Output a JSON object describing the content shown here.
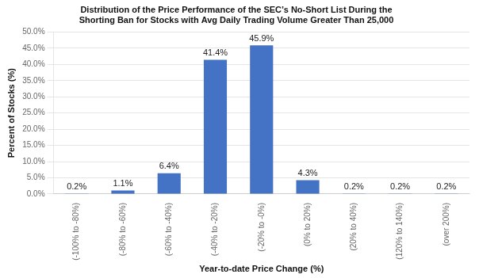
{
  "chart_data": {
    "type": "bar",
    "title": "Distribution of the Price Performance of the SEC’s No-Short List During the\nShorting Ban for Stocks with Avg Daily Trading Volume Greater Than 25,000",
    "xlabel": "Year-to-date Price Change (%)",
    "ylabel": "Percent of Stocks (%)",
    "categories": [
      "(-100% to -80%)",
      "(-80% to -60%)",
      "(-60% to -40%)",
      "(-40% to -20%)",
      "(-20% to -0%)",
      "(0% to 20%)",
      "(20% to 40%)",
      "(120% to 140%)",
      "(over 200%)"
    ],
    "values": [
      0.2,
      1.1,
      6.4,
      41.4,
      45.9,
      4.3,
      0.2,
      0.2,
      0.2
    ],
    "value_labels": [
      "0.2%",
      "1.1%",
      "6.4%",
      "41.4%",
      "45.9%",
      "4.3%",
      "0.2%",
      "0.2%",
      "0.2%"
    ],
    "data_labels": true,
    "color": "#4472C4",
    "ylim": [
      0,
      50
    ],
    "yticks": [
      {
        "value": 0,
        "label": "0.0%"
      },
      {
        "value": 5,
        "label": "5.0%"
      },
      {
        "value": 10,
        "label": "10.0%"
      },
      {
        "value": 15,
        "label": "15.0%"
      },
      {
        "value": 20,
        "label": "20.0%"
      },
      {
        "value": 25,
        "label": "25.0%"
      },
      {
        "value": 30,
        "label": "30.0%"
      },
      {
        "value": 35,
        "label": "35.0%"
      },
      {
        "value": 40,
        "label": "40.0%"
      },
      {
        "value": 45,
        "label": "45.0%"
      },
      {
        "value": 50,
        "label": "50.0%"
      }
    ],
    "grid": true
  }
}
